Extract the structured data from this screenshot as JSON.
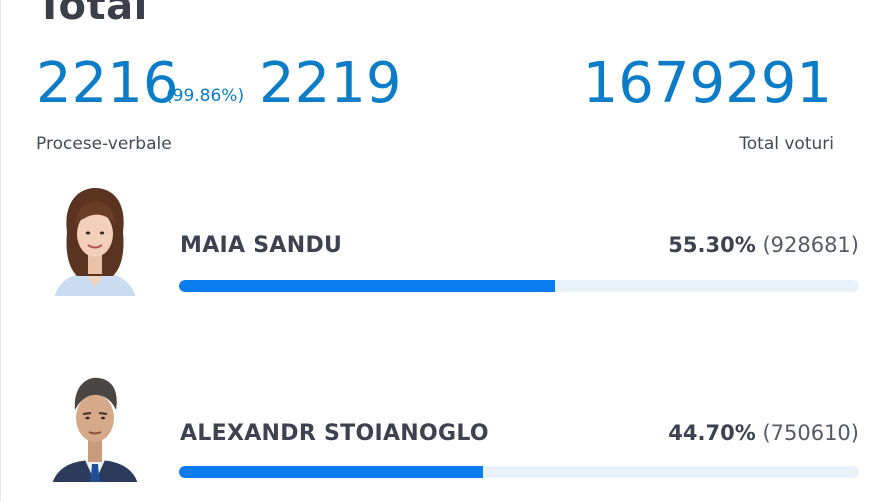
{
  "header": {
    "title": "Total"
  },
  "stats": {
    "reports_counted": "2216",
    "reports_percent": "(99.86%)",
    "reports_total": "2219",
    "reports_label": "Procese-verbale",
    "total_votes": "1679291",
    "total_votes_label": "Total voturi"
  },
  "candidates": [
    {
      "name": "MAIA SANDU",
      "percent": "55.30%",
      "votes": "(928681)",
      "share": 0.553,
      "avatar": "portrait-woman",
      "bar_color": "#0a7cf0"
    },
    {
      "name": "ALEXANDR STOIANOGLO",
      "percent": "44.70%",
      "votes": "(750610)",
      "share": 0.447,
      "avatar": "portrait-man",
      "bar_color": "#0a7cf0"
    }
  ],
  "colors": {
    "accent": "#0a7cc8",
    "bar": "#0a7cf0",
    "track": "#e8f0fa",
    "text": "#3e4250"
  }
}
